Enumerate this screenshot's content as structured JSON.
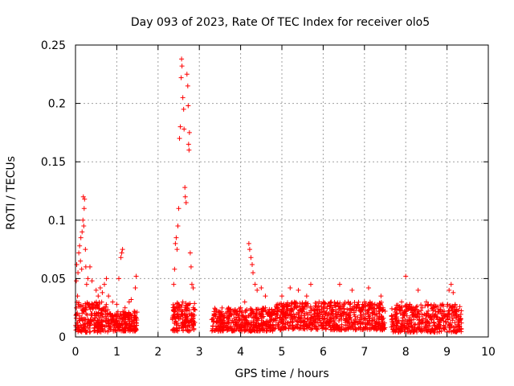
{
  "chart_data": {
    "type": "scatter",
    "title": "Day 093 of 2023, Rate Of TEC Index for receiver olo5",
    "xlabel": "GPS time / hours",
    "ylabel": "ROTI / TECUs",
    "xlim": [
      0,
      10
    ],
    "ylim": [
      0,
      0.25
    ],
    "x_ticks": [
      "0",
      "1",
      "2",
      "3",
      "4",
      "5",
      "6",
      "7",
      "8",
      "9",
      "10"
    ],
    "y_ticks": [
      "0",
      "0.05",
      "0.1",
      "0.15",
      "0.2",
      "0.25"
    ],
    "grid": true,
    "legend": "none",
    "marker": "plus",
    "color": "#ff0000",
    "series": [
      {
        "points": [
          [
            0.02,
            0.048
          ],
          [
            0.03,
            0.062
          ],
          [
            0.05,
            0.035
          ],
          [
            0.06,
            0.055
          ],
          [
            0.08,
            0.072
          ],
          [
            0.1,
            0.078
          ],
          [
            0.12,
            0.065
          ],
          [
            0.13,
            0.085
          ],
          [
            0.15,
            0.058
          ],
          [
            0.16,
            0.09
          ],
          [
            0.18,
            0.1
          ],
          [
            0.19,
            0.12
          ],
          [
            0.2,
            0.095
          ],
          [
            0.21,
            0.11
          ],
          [
            0.22,
            0.118
          ],
          [
            0.24,
            0.075
          ],
          [
            0.25,
            0.06
          ],
          [
            0.27,
            0.045
          ],
          [
            0.3,
            0.05
          ],
          [
            0.35,
            0.06
          ],
          [
            0.4,
            0.048
          ],
          [
            0.5,
            0.04
          ],
          [
            0.55,
            0.035
          ],
          [
            0.6,
            0.042
          ],
          [
            0.65,
            0.038
          ],
          [
            0.7,
            0.045
          ],
          [
            0.75,
            0.05
          ],
          [
            0.8,
            0.035
          ],
          [
            0.9,
            0.03
          ],
          [
            1.0,
            0.028
          ],
          [
            1.05,
            0.05
          ],
          [
            1.1,
            0.068
          ],
          [
            1.12,
            0.072
          ],
          [
            1.14,
            0.075
          ],
          [
            1.2,
            0.025
          ],
          [
            1.3,
            0.03
          ],
          [
            1.35,
            0.032
          ],
          [
            1.45,
            0.042
          ],
          [
            1.47,
            0.052
          ],
          [
            0.05,
            0.012
          ],
          [
            0.1,
            0.018
          ],
          [
            0.15,
            0.008
          ],
          [
            0.2,
            0.022
          ],
          [
            0.25,
            0.015
          ],
          [
            0.3,
            0.028
          ],
          [
            0.35,
            0.01
          ],
          [
            0.4,
            0.02
          ],
          [
            0.45,
            0.014
          ],
          [
            0.5,
            0.025
          ],
          [
            0.55,
            0.012
          ],
          [
            0.6,
            0.018
          ],
          [
            0.65,
            0.009
          ],
          [
            0.7,
            0.022
          ],
          [
            0.75,
            0.016
          ],
          [
            0.8,
            0.011
          ],
          [
            0.85,
            0.02
          ],
          [
            0.9,
            0.014
          ],
          [
            0.95,
            0.018
          ],
          [
            1.0,
            0.012
          ],
          [
            1.05,
            0.016
          ],
          [
            1.1,
            0.01
          ],
          [
            1.15,
            0.015
          ],
          [
            1.2,
            0.012
          ],
          [
            1.25,
            0.018
          ],
          [
            1.3,
            0.011
          ],
          [
            1.35,
            0.016
          ],
          [
            1.4,
            0.013
          ],
          [
            1.45,
            0.017
          ],
          [
            1.48,
            0.01
          ],
          [
            2.38,
            0.045
          ],
          [
            2.4,
            0.058
          ],
          [
            2.42,
            0.08
          ],
          [
            2.44,
            0.085
          ],
          [
            2.46,
            0.075
          ],
          [
            2.48,
            0.095
          ],
          [
            2.5,
            0.11
          ],
          [
            2.52,
            0.17
          ],
          [
            2.54,
            0.18
          ],
          [
            2.56,
            0.222
          ],
          [
            2.57,
            0.238
          ],
          [
            2.58,
            0.232
          ],
          [
            2.6,
            0.205
          ],
          [
            2.62,
            0.195
          ],
          [
            2.63,
            0.178
          ],
          [
            2.65,
            0.128
          ],
          [
            2.66,
            0.12
          ],
          [
            2.68,
            0.115
          ],
          [
            2.7,
            0.225
          ],
          [
            2.72,
            0.215
          ],
          [
            2.73,
            0.198
          ],
          [
            2.74,
            0.165
          ],
          [
            2.75,
            0.16
          ],
          [
            2.76,
            0.175
          ],
          [
            2.78,
            0.072
          ],
          [
            2.8,
            0.06
          ],
          [
            2.82,
            0.045
          ],
          [
            2.85,
            0.042
          ],
          [
            2.35,
            0.015
          ],
          [
            2.4,
            0.022
          ],
          [
            2.45,
            0.012
          ],
          [
            2.5,
            0.028
          ],
          [
            2.55,
            0.018
          ],
          [
            2.6,
            0.03
          ],
          [
            2.65,
            0.014
          ],
          [
            2.7,
            0.025
          ],
          [
            2.75,
            0.012
          ],
          [
            2.8,
            0.02
          ],
          [
            2.85,
            0.016
          ],
          [
            3.3,
            0.015
          ],
          [
            3.4,
            0.02
          ],
          [
            3.5,
            0.012
          ],
          [
            3.6,
            0.018
          ],
          [
            3.7,
            0.022
          ],
          [
            3.8,
            0.014
          ],
          [
            3.9,
            0.02
          ],
          [
            4.0,
            0.025
          ],
          [
            4.1,
            0.03
          ],
          [
            4.2,
            0.08
          ],
          [
            4.22,
            0.075
          ],
          [
            4.25,
            0.068
          ],
          [
            4.28,
            0.062
          ],
          [
            4.3,
            0.055
          ],
          [
            4.35,
            0.045
          ],
          [
            4.4,
            0.04
          ],
          [
            4.5,
            0.042
          ],
          [
            4.6,
            0.035
          ],
          [
            4.2,
            0.018
          ],
          [
            4.3,
            0.022
          ],
          [
            4.4,
            0.016
          ],
          [
            4.5,
            0.02
          ],
          [
            4.6,
            0.025
          ],
          [
            4.7,
            0.018
          ],
          [
            4.8,
            0.022
          ],
          [
            4.9,
            0.028
          ],
          [
            5.0,
            0.035
          ],
          [
            5.1,
            0.02
          ],
          [
            5.2,
            0.042
          ],
          [
            5.3,
            0.025
          ],
          [
            5.4,
            0.04
          ],
          [
            5.5,
            0.022
          ],
          [
            5.6,
            0.035
          ],
          [
            5.7,
            0.045
          ],
          [
            5.8,
            0.02
          ],
          [
            5.9,
            0.03
          ],
          [
            6.0,
            0.025
          ],
          [
            6.1,
            0.018
          ],
          [
            6.2,
            0.022
          ],
          [
            6.3,
            0.02
          ],
          [
            6.4,
            0.045
          ],
          [
            6.5,
            0.028
          ],
          [
            6.6,
            0.018
          ],
          [
            6.7,
            0.04
          ],
          [
            6.8,
            0.025
          ],
          [
            6.9,
            0.022
          ],
          [
            7.0,
            0.03
          ],
          [
            7.1,
            0.042
          ],
          [
            7.2,
            0.025
          ],
          [
            7.3,
            0.02
          ],
          [
            7.4,
            0.035
          ],
          [
            7.5,
            0.022
          ],
          [
            7.7,
            0.018
          ],
          [
            7.8,
            0.025
          ],
          [
            7.9,
            0.03
          ],
          [
            8.0,
            0.052
          ],
          [
            8.1,
            0.028
          ],
          [
            8.2,
            0.022
          ],
          [
            8.3,
            0.04
          ],
          [
            8.4,
            0.025
          ],
          [
            8.5,
            0.03
          ],
          [
            8.6,
            0.018
          ],
          [
            8.7,
            0.025
          ],
          [
            8.8,
            0.022
          ],
          [
            8.9,
            0.02
          ],
          [
            9.0,
            0.018
          ],
          [
            9.05,
            0.04
          ],
          [
            9.1,
            0.045
          ],
          [
            9.15,
            0.038
          ],
          [
            9.2,
            0.02
          ],
          [
            9.3,
            0.015
          ],
          [
            9.35,
            0.012
          ]
        ]
      }
    ],
    "dense_bands": [
      {
        "x_start": 0.0,
        "x_end": 0.8,
        "y_low": 0.004,
        "y_high": 0.03
      },
      {
        "x_start": 0.8,
        "x_end": 1.5,
        "y_low": 0.005,
        "y_high": 0.022
      },
      {
        "x_start": 2.35,
        "x_end": 2.9,
        "y_low": 0.005,
        "y_high": 0.03
      },
      {
        "x_start": 3.3,
        "x_end": 4.8,
        "y_low": 0.005,
        "y_high": 0.025
      },
      {
        "x_start": 4.8,
        "x_end": 7.5,
        "y_low": 0.006,
        "y_high": 0.03
      },
      {
        "x_start": 7.65,
        "x_end": 9.35,
        "y_low": 0.004,
        "y_high": 0.028
      }
    ]
  }
}
